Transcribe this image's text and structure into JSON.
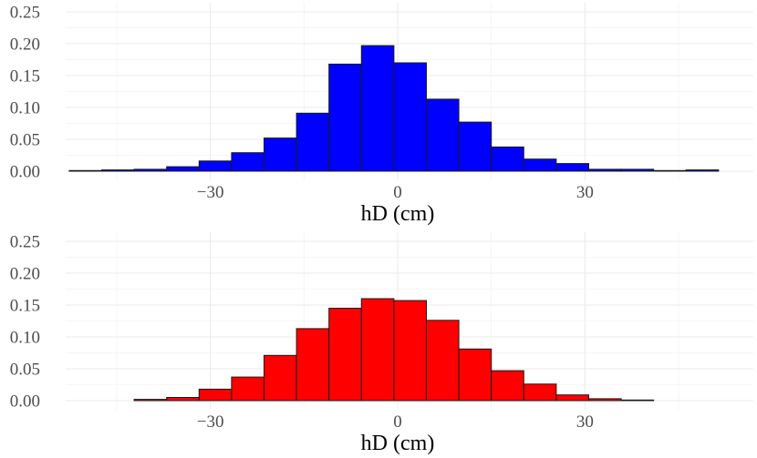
{
  "chart_data": [
    {
      "type": "bar",
      "subtype": "histogram",
      "color": "#0000ff",
      "xlabel": "hD (cm)",
      "ylabel": "",
      "xlim": [
        -52,
        52
      ],
      "ylim": [
        0,
        0.25
      ],
      "x_ticks": [
        -30,
        0,
        30
      ],
      "x_tick_labels": [
        "−30",
        "0",
        "30"
      ],
      "y_ticks": [
        0.0,
        0.05,
        0.1,
        0.15,
        0.2,
        0.25
      ],
      "y_tick_labels": [
        "0.00",
        "0.05",
        "0.10",
        "0.15",
        "0.20",
        "0.25"
      ],
      "bin_width": 5.2,
      "bin_centers": [
        -50,
        -44.8,
        -39.6,
        -34.4,
        -29.2,
        -24,
        -18.8,
        -13.6,
        -8.4,
        -3.2,
        2,
        7.2,
        12.4,
        17.6,
        22.8,
        28,
        33.2,
        38.4,
        43.6,
        48.8
      ],
      "values": [
        0.001,
        0.002,
        0.003,
        0.007,
        0.016,
        0.029,
        0.052,
        0.091,
        0.168,
        0.197,
        0.17,
        0.113,
        0.077,
        0.038,
        0.019,
        0.012,
        0.003,
        0.003,
        0.001,
        0.002
      ],
      "grid": true
    },
    {
      "type": "bar",
      "subtype": "histogram",
      "color": "#ff0000",
      "xlabel": "hD (cm)",
      "ylabel": "",
      "xlim": [
        -52,
        52
      ],
      "ylim": [
        0,
        0.25
      ],
      "x_ticks": [
        -30,
        0,
        30
      ],
      "x_tick_labels": [
        "−30",
        "0",
        "30"
      ],
      "y_ticks": [
        0.0,
        0.05,
        0.1,
        0.15,
        0.2,
        0.25
      ],
      "y_tick_labels": [
        "0.00",
        "0.05",
        "0.10",
        "0.15",
        "0.20",
        "0.25"
      ],
      "bin_width": 5.2,
      "bin_centers": [
        -50,
        -44.8,
        -39.6,
        -34.4,
        -29.2,
        -24,
        -18.8,
        -13.6,
        -8.4,
        -3.2,
        2,
        7.2,
        12.4,
        17.6,
        22.8,
        28,
        33.2,
        38.4,
        43.6,
        48.8
      ],
      "values": [
        0.0,
        0.0,
        0.002,
        0.005,
        0.018,
        0.037,
        0.071,
        0.113,
        0.145,
        0.16,
        0.157,
        0.126,
        0.081,
        0.047,
        0.026,
        0.009,
        0.003,
        0.001,
        0.0,
        0.0
      ],
      "grid": true
    }
  ]
}
